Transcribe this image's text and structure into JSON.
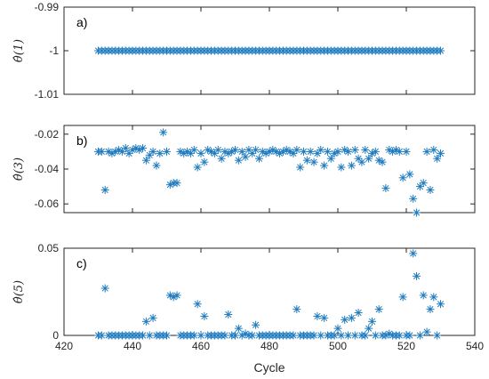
{
  "chart_data": [
    {
      "type": "scatter",
      "panel_label": "a)",
      "ylabel": "θ̂(1)",
      "xlim": [
        420,
        540
      ],
      "ylim": [
        -1.01,
        -0.99
      ],
      "yticks": [
        -1.01,
        -1,
        -0.99
      ],
      "ytick_labels": [
        "-1.01",
        "-1",
        "-0.99"
      ],
      "x_start": 430,
      "values": [
        -1,
        -1,
        -1,
        -1,
        -1,
        -1,
        -1,
        -1,
        -1,
        -1,
        -1,
        -1,
        -1,
        -1,
        -1,
        -1,
        -1,
        -1,
        -1,
        -1,
        -1,
        -1,
        -1,
        -1,
        -1,
        -1,
        -1,
        -1,
        -1,
        -1,
        -1,
        -1,
        -1,
        -1,
        -1,
        -1,
        -1,
        -1,
        -1,
        -1,
        -1,
        -1,
        -1,
        -1,
        -1,
        -1,
        -1,
        -1,
        -1,
        -1,
        -1,
        -1,
        -1,
        -1,
        -1,
        -1,
        -1,
        -1,
        -1,
        -1,
        -1,
        -1,
        -1,
        -1,
        -1,
        -1,
        -1,
        -1,
        -1,
        -1,
        -1,
        -1,
        -1,
        -1,
        -1,
        -1,
        -1,
        -1,
        -1,
        -1,
        -1,
        -1,
        -1,
        -1,
        -1,
        -1,
        -1,
        -1,
        -1,
        -1,
        -1,
        -1,
        -1,
        -1,
        -1,
        -1,
        -1,
        -1,
        -1,
        -1,
        -1
      ],
      "marker": "*",
      "color": "#1f7bbf"
    },
    {
      "type": "scatter",
      "panel_label": "b)",
      "ylabel": "θ̂(3)",
      "xlim": [
        420,
        540
      ],
      "ylim": [
        -0.065,
        -0.015
      ],
      "yticks": [
        -0.06,
        -0.04,
        -0.02
      ],
      "ytick_labels": [
        "-0.06",
        "-0.04",
        "-0.02"
      ],
      "x_start": 430,
      "values": [
        -0.03,
        -0.03,
        -0.052,
        -0.03,
        -0.031,
        -0.03,
        -0.029,
        -0.03,
        -0.028,
        -0.031,
        -0.029,
        -0.028,
        -0.029,
        -0.028,
        -0.035,
        -0.032,
        -0.03,
        -0.038,
        -0.031,
        -0.019,
        -0.03,
        -0.049,
        -0.048,
        -0.048,
        -0.03,
        -0.031,
        -0.03,
        -0.031,
        -0.029,
        -0.039,
        -0.031,
        -0.036,
        -0.029,
        -0.03,
        -0.031,
        -0.029,
        -0.034,
        -0.03,
        -0.031,
        -0.03,
        -0.029,
        -0.035,
        -0.03,
        -0.033,
        -0.029,
        -0.031,
        -0.029,
        -0.034,
        -0.03,
        -0.031,
        -0.03,
        -0.029,
        -0.03,
        -0.031,
        -0.03,
        -0.029,
        -0.03,
        -0.031,
        -0.029,
        -0.039,
        -0.03,
        -0.035,
        -0.03,
        -0.036,
        -0.031,
        -0.029,
        -0.038,
        -0.03,
        -0.034,
        -0.031,
        -0.03,
        -0.039,
        -0.029,
        -0.03,
        -0.038,
        -0.029,
        -0.034,
        -0.036,
        -0.029,
        -0.034,
        -0.031,
        -0.03,
        -0.035,
        -0.036,
        -0.051,
        -0.029,
        -0.03,
        -0.029,
        -0.03,
        -0.045,
        -0.03,
        -0.043,
        -0.057,
        -0.065,
        -0.05,
        -0.048,
        -0.03,
        -0.052,
        -0.029,
        -0.034,
        -0.031
      ],
      "marker": "*",
      "color": "#1f7bbf"
    },
    {
      "type": "scatter",
      "panel_label": "c)",
      "ylabel": "θ̂(5)",
      "xlabel": "Cycle",
      "xlim": [
        420,
        540
      ],
      "ylim": [
        0,
        0.05
      ],
      "xticks": [
        420,
        440,
        460,
        480,
        500,
        520,
        540
      ],
      "xtick_labels": [
        "420",
        "440",
        "460",
        "480",
        "500",
        "520",
        "540"
      ],
      "yticks": [
        0,
        0.05
      ],
      "ytick_labels": [
        "0",
        "0.05"
      ],
      "x_start": 430,
      "values": [
        0,
        0,
        0.027,
        0,
        0,
        0,
        0,
        0,
        0,
        0,
        0,
        0,
        0,
        0,
        0.008,
        0,
        0.01,
        0,
        0,
        0,
        0,
        0.023,
        0.022,
        0.023,
        0,
        0,
        0,
        0,
        0,
        0.018,
        0,
        0.011,
        0,
        0,
        0,
        0,
        0,
        0,
        0.012,
        0,
        0,
        0.004,
        0,
        0.001,
        0,
        0,
        0.006,
        0,
        0,
        0,
        0,
        0,
        0,
        0,
        0,
        0,
        0,
        0,
        0.015,
        0,
        0,
        0,
        0,
        0,
        0.011,
        0,
        0.01,
        0,
        0,
        0,
        0.004,
        0,
        0.009,
        0,
        0.01,
        0,
        0.013,
        0,
        0,
        0.004,
        0.008,
        0,
        0.015,
        0,
        0,
        0.001,
        0,
        0,
        0,
        0.022,
        0,
        0,
        0.047,
        0.034,
        0,
        0.023,
        0.002,
        0.015,
        0.022,
        0,
        0.018
      ],
      "marker": "*",
      "color": "#1f7bbf"
    }
  ]
}
